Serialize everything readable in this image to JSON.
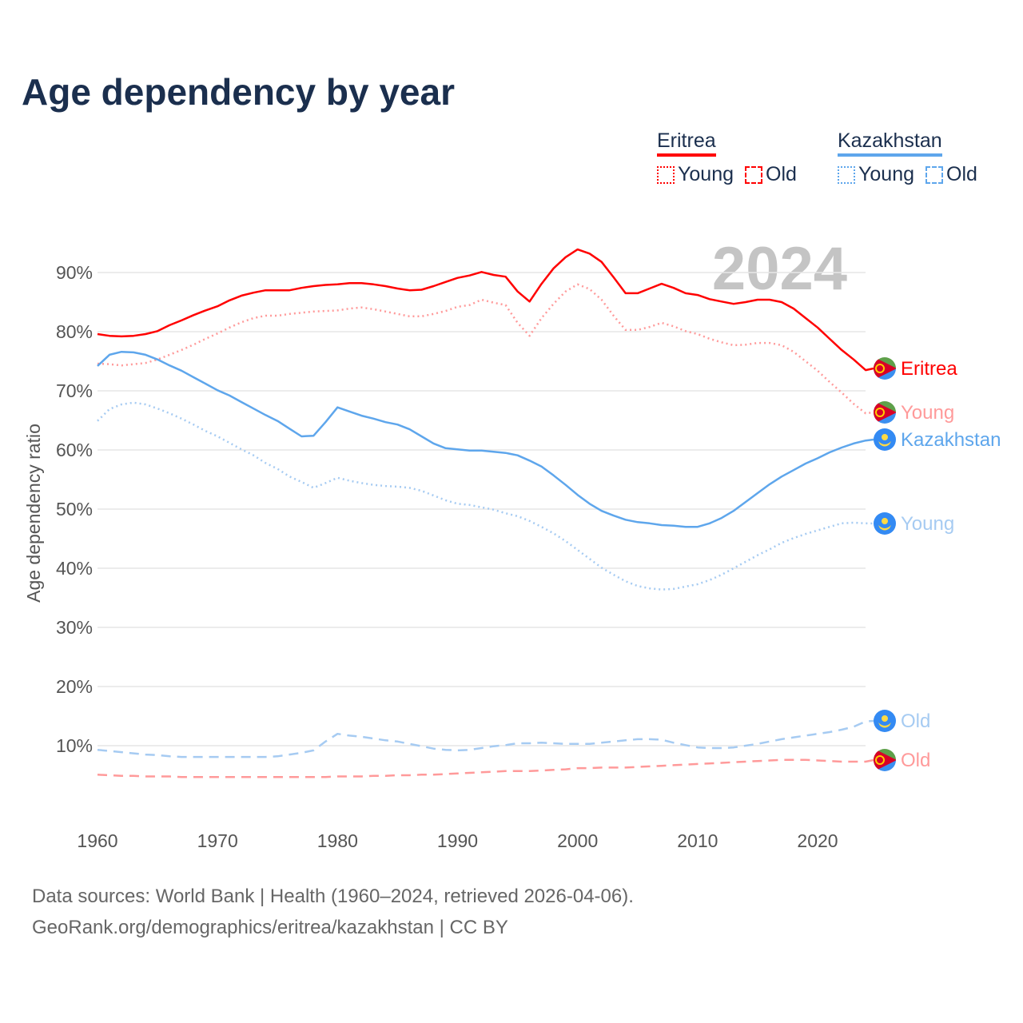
{
  "title": "Age dependency by year",
  "legend": {
    "groups": [
      {
        "country": "Eritrea",
        "color": "#ff0000",
        "light_color": "#ff9a9a",
        "items": [
          "Young",
          "Old"
        ]
      },
      {
        "country": "Kazakhstan",
        "color": "#5ea6ec",
        "light_color": "#a6cbf2",
        "items": [
          "Young",
          "Old"
        ]
      }
    ]
  },
  "year_watermark": "2024",
  "footer": {
    "line1": "Data sources: World Bank | Health (1960–2024, retrieved 2026-04-06).",
    "line2": "GeoRank.org/demographics/eritrea/kazakhstan | CC BY"
  },
  "chart_data": {
    "type": "line",
    "title": "Age dependency by year",
    "xlabel": "",
    "ylabel": "Age dependency ratio",
    "xlim": [
      1960,
      2024
    ],
    "ylim": [
      0,
      95
    ],
    "x_ticks": [
      "1960",
      "1970",
      "1980",
      "1990",
      "2000",
      "2010",
      "2020"
    ],
    "y_ticks": [
      "10%",
      "20%",
      "30%",
      "40%",
      "50%",
      "60%",
      "70%",
      "80%",
      "90%"
    ],
    "grid": true,
    "legend_position": "top-right",
    "x_start": 1960,
    "series": [
      {
        "name": "Eritrea",
        "end_label": "Eritrea",
        "style": "solid",
        "color": "#ff0000",
        "flag": "eritrea-flag",
        "values": [
          79.6,
          79.3,
          79.2,
          79.3,
          79.6,
          80.1,
          81.1,
          81.9,
          82.8,
          83.6,
          84.3,
          85.3,
          86.1,
          86.6,
          87.0,
          87.0,
          87.0,
          87.4,
          87.7,
          87.9,
          88.0,
          88.2,
          88.2,
          88.0,
          87.7,
          87.3,
          87.0,
          87.1,
          87.7,
          88.4,
          89.1,
          89.5,
          90.1,
          89.6,
          89.3,
          86.8,
          85.1,
          88.1,
          90.7,
          92.6,
          93.9,
          93.2,
          91.8,
          89.2,
          86.5,
          86.5,
          87.3,
          88.1,
          87.4,
          86.5,
          86.2,
          85.5,
          85.1,
          84.7,
          85.0,
          85.4,
          85.4,
          85.0,
          83.9,
          82.3,
          80.7,
          78.8,
          76.9,
          75.3,
          73.5
        ]
      },
      {
        "name": "Eritrea Young",
        "end_label": "Young",
        "style": "dotted",
        "color": "#ff9a9a",
        "flag": "eritrea-flag",
        "values": [
          74.6,
          74.5,
          74.3,
          74.5,
          74.7,
          75.3,
          76.1,
          76.9,
          77.8,
          78.8,
          79.7,
          80.7,
          81.6,
          82.3,
          82.7,
          82.7,
          83.0,
          83.2,
          83.4,
          83.5,
          83.6,
          83.9,
          84.1,
          83.8,
          83.4,
          83.0,
          82.6,
          82.6,
          83.0,
          83.5,
          84.2,
          84.5,
          85.4,
          84.9,
          84.5,
          81.5,
          79.3,
          82.3,
          84.7,
          86.8,
          88.0,
          87.2,
          85.4,
          82.7,
          80.3,
          80.3,
          80.8,
          81.5,
          80.9,
          80.1,
          79.6,
          78.8,
          78.2,
          77.7,
          77.8,
          78.1,
          78.1,
          77.7,
          76.6,
          75.0,
          73.4,
          71.5,
          69.7,
          67.8,
          66.2
        ]
      },
      {
        "name": "Eritrea Old",
        "end_label": "Old",
        "style": "dashed",
        "color": "#ff9a9a",
        "flag": "eritrea-flag",
        "values": [
          5.1,
          5.0,
          4.9,
          4.9,
          4.8,
          4.8,
          4.8,
          4.7,
          4.7,
          4.7,
          4.7,
          4.7,
          4.7,
          4.7,
          4.7,
          4.7,
          4.7,
          4.7,
          4.7,
          4.7,
          4.8,
          4.8,
          4.8,
          4.9,
          4.9,
          5.0,
          5.0,
          5.1,
          5.1,
          5.2,
          5.3,
          5.4,
          5.5,
          5.6,
          5.7,
          5.7,
          5.7,
          5.8,
          5.9,
          6.0,
          6.2,
          6.2,
          6.3,
          6.3,
          6.3,
          6.4,
          6.5,
          6.6,
          6.7,
          6.8,
          6.9,
          7.0,
          7.1,
          7.2,
          7.3,
          7.4,
          7.5,
          7.6,
          7.6,
          7.6,
          7.5,
          7.4,
          7.3,
          7.3,
          7.3
        ]
      },
      {
        "name": "Kazakhstan",
        "end_label": "Kazakhstan",
        "style": "solid",
        "color": "#5ea6ec",
        "flag": "kazakhstan-flag",
        "values": [
          74.2,
          76.1,
          76.6,
          76.5,
          76.1,
          75.3,
          74.3,
          73.4,
          72.3,
          71.2,
          70.1,
          69.2,
          68.1,
          67.0,
          65.9,
          64.9,
          63.6,
          62.3,
          62.4,
          64.7,
          67.2,
          66.5,
          65.8,
          65.3,
          64.7,
          64.3,
          63.5,
          62.3,
          61.1,
          60.3,
          60.1,
          59.9,
          59.9,
          59.7,
          59.5,
          59.1,
          58.2,
          57.2,
          55.7,
          54.1,
          52.4,
          50.9,
          49.7,
          48.9,
          48.2,
          47.8,
          47.6,
          47.3,
          47.2,
          47.0,
          47.0,
          47.6,
          48.5,
          49.7,
          51.2,
          52.7,
          54.2,
          55.5,
          56.6,
          57.7,
          58.6,
          59.6,
          60.4,
          61.1,
          61.6
        ]
      },
      {
        "name": "Kazakhstan Young",
        "end_label": "Young",
        "style": "dotted",
        "color": "#a6cbf2",
        "flag": "kazakhstan-flag",
        "values": [
          64.9,
          66.9,
          67.7,
          68.0,
          67.7,
          67.0,
          66.2,
          65.3,
          64.3,
          63.2,
          62.3,
          61.2,
          60.1,
          59.1,
          57.8,
          56.8,
          55.5,
          54.6,
          53.6,
          54.4,
          55.3,
          54.8,
          54.4,
          54.1,
          53.9,
          53.8,
          53.6,
          53.1,
          52.3,
          51.5,
          50.9,
          50.7,
          50.3,
          49.9,
          49.3,
          48.8,
          48.0,
          47.0,
          45.9,
          44.6,
          43.1,
          41.6,
          40.1,
          38.9,
          37.8,
          37.0,
          36.6,
          36.4,
          36.5,
          36.9,
          37.3,
          38.0,
          38.9,
          40.0,
          41.1,
          42.2,
          43.2,
          44.3,
          45.1,
          45.8,
          46.4,
          47.0,
          47.6,
          47.7,
          47.6
        ]
      },
      {
        "name": "Kazakhstan Old",
        "end_label": "Old",
        "style": "dashed",
        "color": "#a6cbf2",
        "flag": "kazakhstan-flag",
        "values": [
          9.3,
          9.1,
          8.9,
          8.7,
          8.5,
          8.4,
          8.2,
          8.1,
          8.1,
          8.1,
          8.1,
          8.1,
          8.1,
          8.1,
          8.1,
          8.2,
          8.5,
          8.8,
          9.2,
          10.7,
          12.0,
          11.7,
          11.5,
          11.2,
          10.9,
          10.7,
          10.3,
          9.9,
          9.5,
          9.3,
          9.2,
          9.3,
          9.6,
          9.9,
          10.1,
          10.4,
          10.4,
          10.5,
          10.4,
          10.3,
          10.3,
          10.3,
          10.5,
          10.7,
          10.9,
          11.1,
          11.1,
          11.0,
          10.5,
          10.1,
          9.7,
          9.6,
          9.6,
          9.7,
          10.0,
          10.3,
          10.7,
          11.1,
          11.4,
          11.7,
          12.0,
          12.3,
          12.7,
          13.2,
          14.1
        ]
      }
    ]
  }
}
